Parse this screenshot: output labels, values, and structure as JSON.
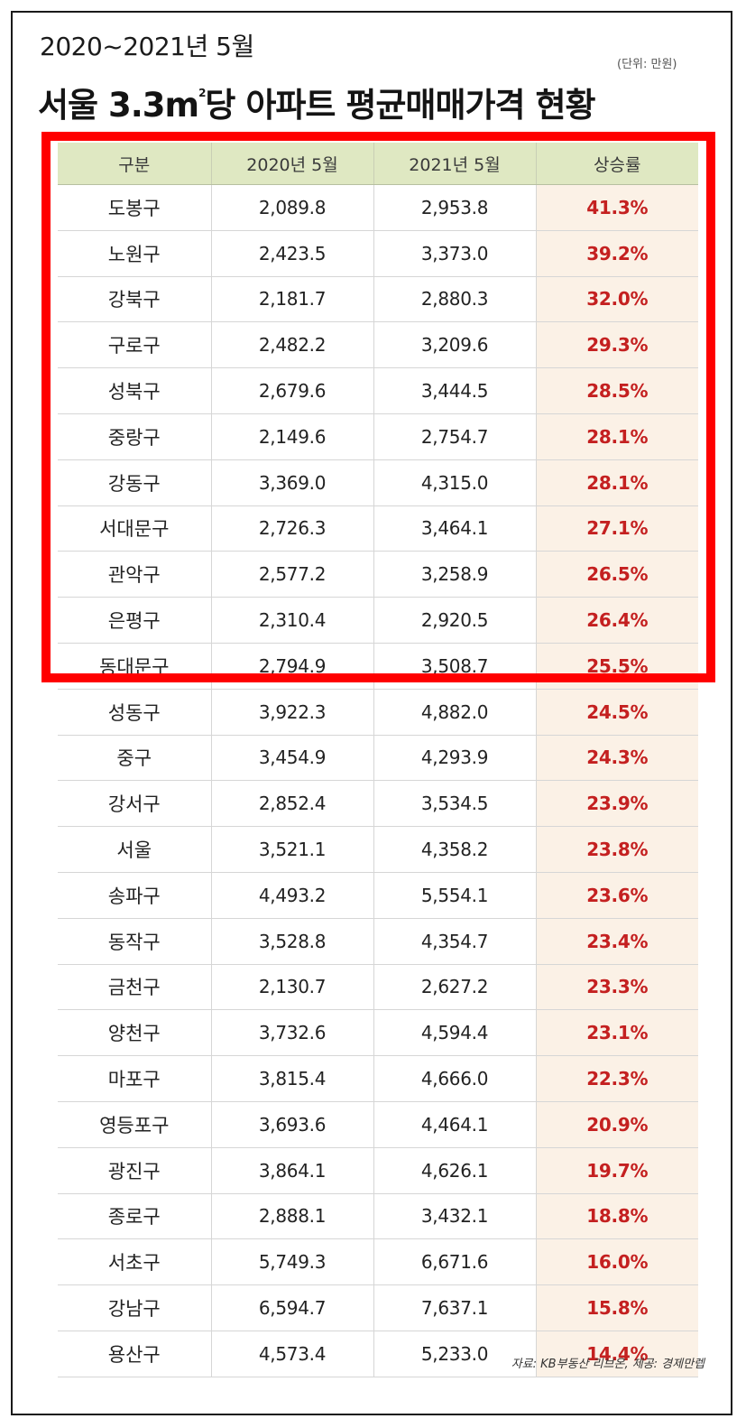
{
  "header": {
    "subtitle": "2020~2021년 5월",
    "unit": "(단위: 만원)",
    "title_part1": "서울 3.3m",
    "title_sup": "2",
    "title_part2": "당 아파트 평균매매가격 현황"
  },
  "table": {
    "columns": [
      "구분",
      "2020년 5월",
      "2021년 5월",
      "상승률"
    ],
    "rows": [
      [
        "도봉구",
        "2,089.8",
        "2,953.8",
        "41.3%"
      ],
      [
        "노원구",
        "2,423.5",
        "3,373.0",
        "39.2%"
      ],
      [
        "강북구",
        "2,181.7",
        "2,880.3",
        "32.0%"
      ],
      [
        "구로구",
        "2,482.2",
        "3,209.6",
        "29.3%"
      ],
      [
        "성북구",
        "2,679.6",
        "3,444.5",
        "28.5%"
      ],
      [
        "중랑구",
        "2,149.6",
        "2,754.7",
        "28.1%"
      ],
      [
        "강동구",
        "3,369.0",
        "4,315.0",
        "28.1%"
      ],
      [
        "서대문구",
        "2,726.3",
        "3,464.1",
        "27.1%"
      ],
      [
        "관악구",
        "2,577.2",
        "3,258.9",
        "26.5%"
      ],
      [
        "은평구",
        "2,310.4",
        "2,920.5",
        "26.4%"
      ],
      [
        "동대문구",
        "2,794.9",
        "3,508.7",
        "25.5%"
      ],
      [
        "성동구",
        "3,922.3",
        "4,882.0",
        "24.5%"
      ],
      [
        "중구",
        "3,454.9",
        "4,293.9",
        "24.3%"
      ],
      [
        "강서구",
        "2,852.4",
        "3,534.5",
        "23.9%"
      ],
      [
        "서울",
        "3,521.1",
        "4,358.2",
        "23.8%"
      ],
      [
        "송파구",
        "4,493.2",
        "5,554.1",
        "23.6%"
      ],
      [
        "동작구",
        "3,528.8",
        "4,354.7",
        "23.4%"
      ],
      [
        "금천구",
        "2,130.7",
        "2,627.2",
        "23.3%"
      ],
      [
        "양천구",
        "3,732.6",
        "4,594.4",
        "23.1%"
      ],
      [
        "마포구",
        "3,815.4",
        "4,666.0",
        "22.3%"
      ],
      [
        "영등포구",
        "3,693.6",
        "4,464.1",
        "20.9%"
      ],
      [
        "광진구",
        "3,864.1",
        "4,626.1",
        "19.7%"
      ],
      [
        "종로구",
        "2,888.1",
        "3,432.1",
        "18.8%"
      ],
      [
        "서초구",
        "5,749.3",
        "6,671.6",
        "16.0%"
      ],
      [
        "강남구",
        "6,594.7",
        "7,637.1",
        "15.8%"
      ],
      [
        "용산구",
        "4,573.4",
        "5,233.0",
        "14.4%"
      ]
    ]
  },
  "footer": {
    "source": "자료: KB부동산 리브온, 제공: 경제만렙"
  },
  "colors": {
    "header_bg": "#dfe8c2",
    "rate_text": "#c42020",
    "rate_bg": "#fbf1e6",
    "highlight_border": "#ff0000"
  }
}
